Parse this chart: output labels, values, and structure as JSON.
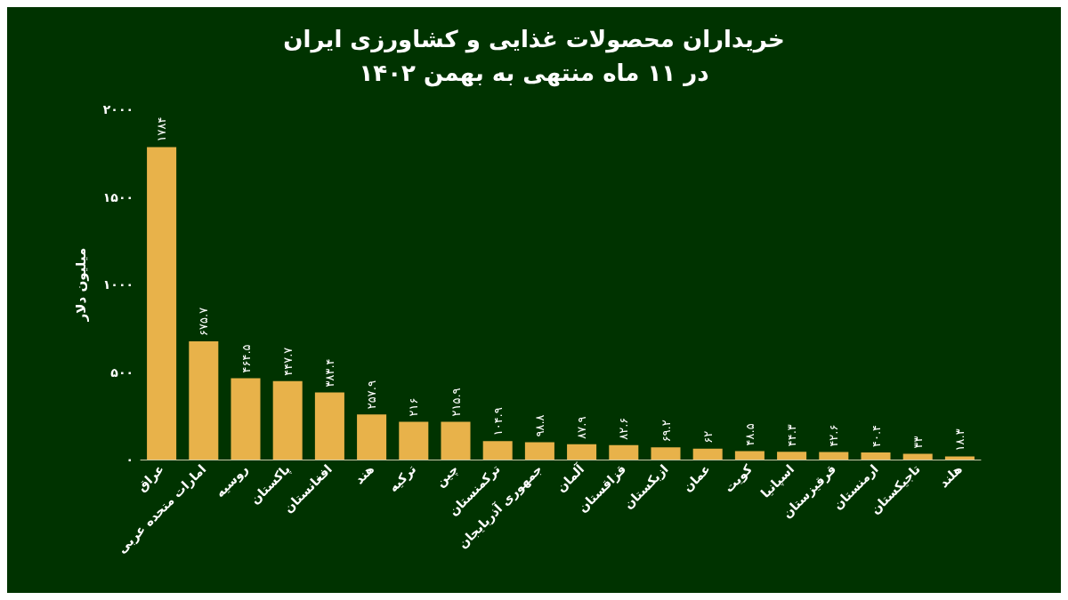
{
  "chart_data": {
    "type": "bar",
    "title": "خریداران محصولات غذایی و کشاورزی ایران",
    "subtitle": "در ۱۱ ماه منتهی به بهمن ۱۴۰۲",
    "ylabel": "میلیون دلار",
    "categories": [
      "عراق",
      "امارات متحده عربی",
      "روسیه",
      "پاکستان",
      "افغانستان",
      "هند",
      "ترکیه",
      "چین",
      "ترکمنستان",
      "جمهوری آذربایجان",
      "آلمان",
      "قزاقستان",
      "ازبکستان",
      "عمان",
      "کویت",
      "اسپانیا",
      "قرقیزستان",
      "ارمنستان",
      "تاجیکستان",
      "هلند"
    ],
    "values": [
      1784,
      675.7,
      464.5,
      447.7,
      383.4,
      257.9,
      216,
      215.9,
      104.9,
      98.8,
      87.9,
      82.6,
      69.2,
      62,
      48.5,
      44.3,
      42.6,
      40.4,
      33,
      18.3
    ],
    "value_labels": [
      "۱۷۸۴",
      "۶۷۵.۷",
      "۴۶۴.۵",
      "۴۴۷.۷",
      "۳۸۳.۴",
      "۲۵۷.۹",
      "۲۱۶",
      "۲۱۵.۹",
      "۱۰۴.۹",
      "۹۸.۸",
      "۸۷.۹",
      "۸۲.۶",
      "۶۹.۲",
      "۶۲",
      "۴۸.۵",
      "۴۴.۳",
      "۴۲.۶",
      "۴۰.۴",
      "۳۳",
      "۱۸.۳"
    ],
    "color": "#e8b24a",
    "ylim": [
      0,
      2000
    ],
    "yticks": [
      {
        "value": 0,
        "label": "۰"
      },
      {
        "value": 500,
        "label": "۵۰۰"
      },
      {
        "value": 1000,
        "label": "۱۰۰۰"
      },
      {
        "value": 1500,
        "label": "۱۵۰۰"
      },
      {
        "value": 2000,
        "label": "۲۰۰۰"
      }
    ],
    "grid": false
  }
}
